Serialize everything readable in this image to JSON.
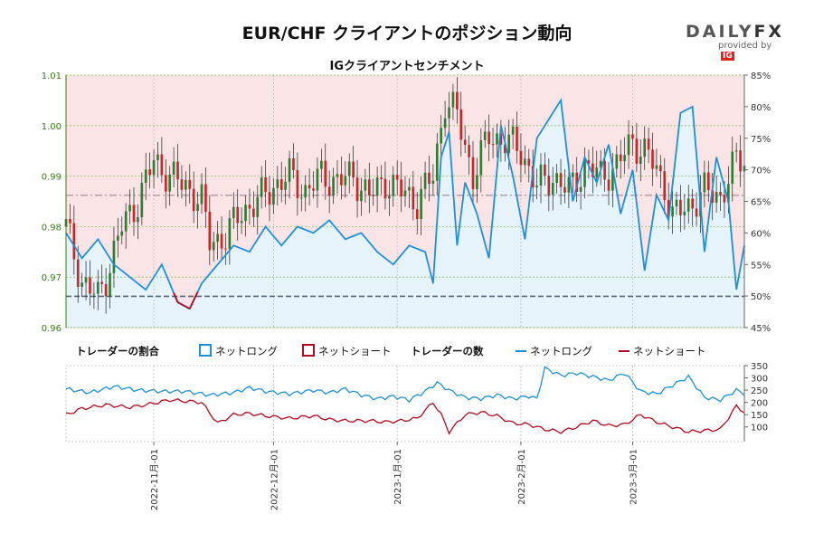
{
  "header": {
    "title": "EUR/CHF クライアントのポジション動向",
    "subtitle": "IGクライアントセンチメント",
    "brand_word_a": "DAILY",
    "brand_word_b": "FX",
    "brand_sub": "provided by",
    "brand_ig": "IG"
  },
  "legend": {
    "ratio_heading": "トレーダーの割合",
    "ratio_long": "ネットロング",
    "ratio_short": "ネットショート",
    "count_heading": "トレーダーの数",
    "count_long": "ネットロング",
    "count_short": "ネットショート"
  },
  "colors": {
    "long": "#1e90d8",
    "short": "#b00a1e",
    "long_fill": "#e6f3fb",
    "short_fill": "#fbe4e6",
    "candle_up": "#2e7d32",
    "candle_down": "#c62828",
    "left_axis": "#3a7a1a"
  },
  "chart_data": [
    {
      "type": "candlestick+line",
      "name_hint": "price-and-sentiment",
      "title": "IGクライアントセンチメント",
      "y_left": {
        "ticks": [
          "0.96",
          "0.97",
          "0.98",
          "0.99",
          "1.00",
          "1.01"
        ],
        "ylim": [
          0.96,
          1.01
        ]
      },
      "y_right": {
        "ticks": [
          "45%",
          "50%",
          "55%",
          "60%",
          "65%",
          "70%",
          "75%",
          "80%",
          "85%"
        ],
        "ylim": [
          45,
          85
        ]
      },
      "reference_lines": [
        0.9662,
        0.9862
      ],
      "x": {
        "start": "2022-10-10",
        "end": "2023-03-29",
        "ticks": [
          {
            "label": "2022-11月-01",
            "day": 22
          },
          {
            "label": "2022-12月-01",
            "day": 52
          },
          {
            "label": "2023-1月-01",
            "day": 83
          },
          {
            "label": "2023-2月-01",
            "day": 114
          },
          {
            "label": "2023-3月-01",
            "day": 142
          }
        ]
      },
      "close_keypoints": [
        [
          0,
          0.98
        ],
        [
          4,
          0.969
        ],
        [
          8,
          0.966
        ],
        [
          10,
          0.97
        ],
        [
          14,
          0.98
        ],
        [
          18,
          0.985
        ],
        [
          22,
          0.993
        ],
        [
          26,
          0.99
        ],
        [
          30,
          0.988
        ],
        [
          34,
          0.985
        ],
        [
          36,
          0.977
        ],
        [
          40,
          0.978
        ],
        [
          44,
          0.983
        ],
        [
          48,
          0.985
        ],
        [
          52,
          0.988
        ],
        [
          56,
          0.99
        ],
        [
          60,
          0.987
        ],
        [
          64,
          0.99
        ],
        [
          68,
          0.989
        ],
        [
          72,
          0.99
        ],
        [
          76,
          0.986
        ],
        [
          80,
          0.989
        ],
        [
          84,
          0.987
        ],
        [
          88,
          0.985
        ],
        [
          92,
          0.99
        ],
        [
          95,
          1.005
        ],
        [
          98,
          1.002
        ],
        [
          102,
          0.99
        ],
        [
          106,
          0.998
        ],
        [
          110,
          0.997
        ],
        [
          114,
          0.995
        ],
        [
          118,
          0.988
        ],
        [
          122,
          0.99
        ],
        [
          126,
          0.987
        ],
        [
          130,
          0.992
        ],
        [
          134,
          0.99
        ],
        [
          138,
          0.992
        ],
        [
          142,
          0.997
        ],
        [
          146,
          0.994
        ],
        [
          150,
          0.988
        ],
        [
          152,
          0.982
        ],
        [
          156,
          0.984
        ],
        [
          160,
          0.987
        ],
        [
          164,
          0.986
        ],
        [
          168,
          0.993
        ],
        [
          170,
          0.993
        ]
      ],
      "long_pct_keypoints": [
        [
          0,
          60
        ],
        [
          4,
          56
        ],
        [
          8,
          59
        ],
        [
          12,
          55
        ],
        [
          16,
          53
        ],
        [
          20,
          51
        ],
        [
          24,
          55
        ],
        [
          28,
          49
        ],
        [
          31,
          48
        ],
        [
          34,
          52
        ],
        [
          38,
          55
        ],
        [
          42,
          58
        ],
        [
          46,
          57
        ],
        [
          50,
          61
        ],
        [
          54,
          58
        ],
        [
          58,
          61
        ],
        [
          62,
          60
        ],
        [
          66,
          62
        ],
        [
          70,
          59
        ],
        [
          74,
          60
        ],
        [
          78,
          57
        ],
        [
          82,
          55
        ],
        [
          86,
          58
        ],
        [
          90,
          57
        ],
        [
          92,
          52
        ],
        [
          94,
          72
        ],
        [
          96,
          76
        ],
        [
          98,
          58
        ],
        [
          100,
          68
        ],
        [
          103,
          63
        ],
        [
          106,
          56
        ],
        [
          109,
          77
        ],
        [
          112,
          69
        ],
        [
          115,
          59
        ],
        [
          118,
          75
        ],
        [
          121,
          78
        ],
        [
          124,
          81
        ],
        [
          127,
          65
        ],
        [
          130,
          72
        ],
        [
          133,
          68
        ],
        [
          136,
          74
        ],
        [
          139,
          63
        ],
        [
          142,
          70
        ],
        [
          145,
          54
        ],
        [
          148,
          66
        ],
        [
          151,
          62
        ],
        [
          154,
          79
        ],
        [
          157,
          80
        ],
        [
          160,
          57
        ],
        [
          163,
          72
        ],
        [
          166,
          65
        ],
        [
          168,
          51
        ],
        [
          170,
          58
        ]
      ],
      "long_count_keypoints": [
        [
          0,
          255
        ],
        [
          6,
          240
        ],
        [
          12,
          265
        ],
        [
          18,
          250
        ],
        [
          24,
          245
        ],
        [
          30,
          245
        ],
        [
          36,
          230
        ],
        [
          42,
          240
        ],
        [
          46,
          260
        ],
        [
          50,
          245
        ],
        [
          56,
          235
        ],
        [
          62,
          250
        ],
        [
          66,
          240
        ],
        [
          70,
          255
        ],
        [
          74,
          230
        ],
        [
          78,
          215
        ],
        [
          82,
          225
        ],
        [
          86,
          210
        ],
        [
          90,
          245
        ],
        [
          93,
          280
        ],
        [
          96,
          250
        ],
        [
          100,
          220
        ],
        [
          104,
          215
        ],
        [
          108,
          230
        ],
        [
          112,
          215
        ],
        [
          116,
          225
        ],
        [
          118,
          215
        ],
        [
          120,
          340
        ],
        [
          124,
          310
        ],
        [
          128,
          320
        ],
        [
          132,
          305
        ],
        [
          136,
          290
        ],
        [
          140,
          320
        ],
        [
          144,
          245
        ],
        [
          148,
          235
        ],
        [
          152,
          270
        ],
        [
          156,
          305
        ],
        [
          160,
          220
        ],
        [
          164,
          210
        ],
        [
          168,
          250
        ],
        [
          170,
          235
        ]
      ],
      "short_count_keypoints": [
        [
          0,
          150
        ],
        [
          4,
          175
        ],
        [
          10,
          190
        ],
        [
          16,
          180
        ],
        [
          20,
          190
        ],
        [
          26,
          210
        ],
        [
          30,
          205
        ],
        [
          34,
          200
        ],
        [
          38,
          115
        ],
        [
          42,
          150
        ],
        [
          46,
          155
        ],
        [
          50,
          145
        ],
        [
          56,
          135
        ],
        [
          62,
          145
        ],
        [
          66,
          130
        ],
        [
          70,
          125
        ],
        [
          76,
          125
        ],
        [
          80,
          120
        ],
        [
          84,
          125
        ],
        [
          88,
          135
        ],
        [
          92,
          200
        ],
        [
          94,
          150
        ],
        [
          96,
          80
        ],
        [
          100,
          150
        ],
        [
          104,
          160
        ],
        [
          108,
          145
        ],
        [
          112,
          115
        ],
        [
          116,
          110
        ],
        [
          120,
          90
        ],
        [
          124,
          80
        ],
        [
          128,
          100
        ],
        [
          132,
          125
        ],
        [
          136,
          105
        ],
        [
          140,
          110
        ],
        [
          144,
          150
        ],
        [
          148,
          120
        ],
        [
          152,
          100
        ],
        [
          156,
          80
        ],
        [
          160,
          85
        ],
        [
          164,
          90
        ],
        [
          168,
          185
        ],
        [
          170,
          160
        ]
      ]
    },
    {
      "type": "line",
      "name_hint": "trader-count",
      "y_right": {
        "ticks": [
          "100",
          "150",
          "200",
          "250",
          "300",
          "350"
        ],
        "ylim": [
          40,
          350
        ]
      }
    }
  ]
}
